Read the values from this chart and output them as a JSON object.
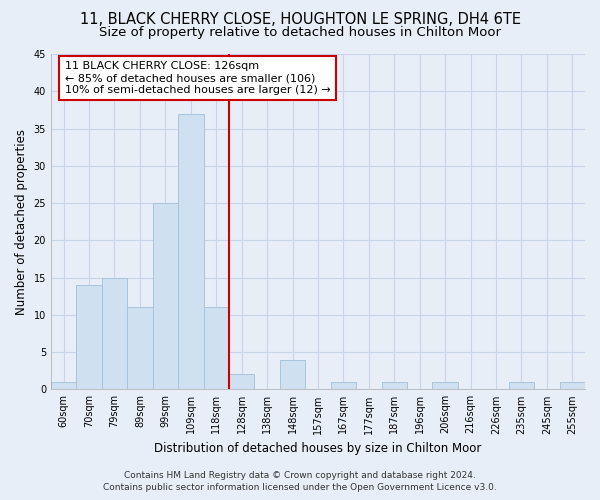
{
  "title": "11, BLACK CHERRY CLOSE, HOUGHTON LE SPRING, DH4 6TE",
  "subtitle": "Size of property relative to detached houses in Chilton Moor",
  "xlabel": "Distribution of detached houses by size in Chilton Moor",
  "ylabel": "Number of detached properties",
  "bin_labels": [
    "60sqm",
    "70sqm",
    "79sqm",
    "89sqm",
    "99sqm",
    "109sqm",
    "118sqm",
    "128sqm",
    "138sqm",
    "148sqm",
    "157sqm",
    "167sqm",
    "177sqm",
    "187sqm",
    "196sqm",
    "206sqm",
    "216sqm",
    "226sqm",
    "235sqm",
    "245sqm",
    "255sqm"
  ],
  "bin_values": [
    1,
    14,
    15,
    11,
    25,
    37,
    11,
    2,
    0,
    4,
    0,
    1,
    0,
    1,
    0,
    1,
    0,
    0,
    1,
    0,
    1
  ],
  "bar_color": "#cfe0f0",
  "bar_edge_color": "#a8c4dc",
  "vline_x_index": 7,
  "vline_color": "#cc0000",
  "annotation_line1": "11 BLACK CHERRY CLOSE: 126sqm",
  "annotation_line2": "← 85% of detached houses are smaller (106)",
  "annotation_line3": "10% of semi-detached houses are larger (12) →",
  "annotation_box_edge_color": "#cc0000",
  "annotation_box_face_color": "#ffffff",
  "ylim": [
    0,
    45
  ],
  "yticks": [
    0,
    5,
    10,
    15,
    20,
    25,
    30,
    35,
    40,
    45
  ],
  "footer_line1": "Contains HM Land Registry data © Crown copyright and database right 2024.",
  "footer_line2": "Contains public sector information licensed under the Open Government Licence v3.0.",
  "bg_color": "#e8eef8",
  "grid_color": "#c8d4e8",
  "title_fontsize": 10.5,
  "subtitle_fontsize": 9.5,
  "axis_label_fontsize": 8.5,
  "tick_fontsize": 7,
  "annotation_fontsize": 8,
  "footer_fontsize": 6.5
}
